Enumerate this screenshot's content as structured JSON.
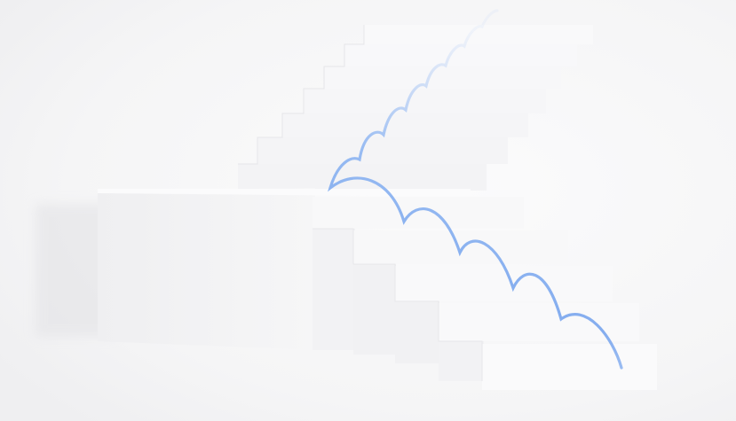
{
  "scene": {
    "description_label": "",
    "colors": {
      "background": "#f6f6f7",
      "stair_top": "#f9f9fa",
      "stair_front": "#f1f1f3",
      "stair_shadow": "#e4e4e7",
      "bounce_path": "#8fb6f2"
    },
    "icons": [
      "staircase-illustration",
      "bouncing-ball-path"
    ]
  }
}
